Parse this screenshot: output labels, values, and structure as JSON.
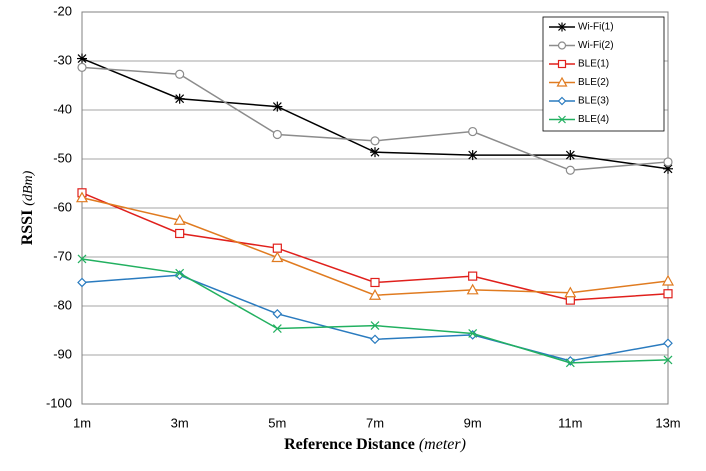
{
  "chart_data": {
    "type": "line",
    "x_label": "Reference Distance",
    "x_label_unit": "(meter)",
    "y_label": "RSSI",
    "y_label_unit": "(dBm)",
    "categories": [
      "1m",
      "3m",
      "5m",
      "7m",
      "9m",
      "11m",
      "13m"
    ],
    "ylim": [
      -100,
      -20
    ],
    "yticks": [
      -100,
      -90,
      -80,
      -70,
      -60,
      -50,
      -40,
      -30,
      -20
    ],
    "grid": true,
    "legend": "upper right",
    "series": [
      {
        "name": "Wi-Fi(1)",
        "color": "#000000",
        "marker": "star",
        "values": [
          -29.5,
          -37.7,
          -39.3,
          -48.6,
          -49.2,
          -49.2,
          -52
        ]
      },
      {
        "name": "Wi-Fi(2)",
        "color": "#8c8c8c",
        "marker": "circle",
        "values": [
          -31.3,
          -32.7,
          -45,
          -46.3,
          -44.4,
          -52.3,
          -50.6
        ]
      },
      {
        "name": "BLE(1)",
        "color": "#e0201c",
        "marker": "square",
        "values": [
          -56.9,
          -65.2,
          -68.2,
          -75.2,
          -73.9,
          -78.8,
          -77.5
        ]
      },
      {
        "name": "BLE(2)",
        "color": "#e07b20",
        "marker": "triangle",
        "values": [
          -57.9,
          -62.5,
          -70.1,
          -77.8,
          -76.7,
          -77.3,
          -74.9
        ]
      },
      {
        "name": "BLE(3)",
        "color": "#2a7bbf",
        "marker": "diamond",
        "values": [
          -75.2,
          -73.7,
          -81.6,
          -86.8,
          -85.9,
          -91.2,
          -87.6
        ]
      },
      {
        "name": "BLE(4)",
        "color": "#22b060",
        "marker": "x",
        "values": [
          -70.4,
          -73.3,
          -84.6,
          -84,
          -85.6,
          -91.6,
          -91
        ]
      }
    ]
  }
}
